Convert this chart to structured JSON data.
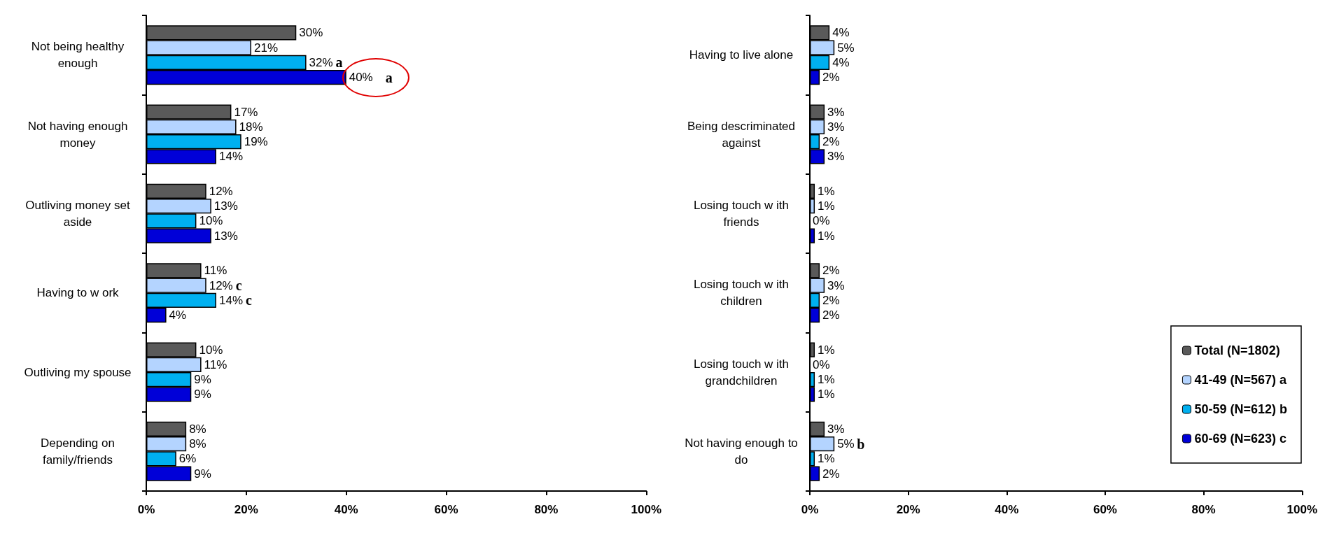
{
  "chart_data": [
    {
      "type": "bar",
      "orientation": "horizontal",
      "categories": [
        "Not being healthy\nenough",
        "Not having enough\nmoney",
        "Outliving money set\naside",
        "Having to w ork",
        "Outliving my spouse",
        "Depending on\nfamily/friends"
      ],
      "series": [
        {
          "color": "#5a5a5a",
          "values": [
            30,
            17,
            12,
            11,
            10,
            8
          ],
          "value_labels": [
            "30%",
            "17%",
            "12%",
            "11%",
            "10%",
            "8%"
          ]
        },
        {
          "color": "#b4d4ff",
          "values": [
            21,
            18,
            13,
            12,
            11,
            8
          ],
          "value_labels": [
            "21%",
            "18%",
            "13%",
            "12%",
            "11%",
            "8%"
          ]
        },
        {
          "color": "#00b0f0",
          "values": [
            32,
            19,
            10,
            14,
            9,
            6
          ],
          "value_labels": [
            "32%",
            "19%",
            "10%",
            "14%",
            "9%",
            "6%"
          ]
        },
        {
          "color": "#0000d8",
          "values": [
            40,
            14,
            13,
            4,
            9,
            9
          ],
          "value_labels": [
            "40%",
            "14%",
            "13%",
            "4%",
            "9%",
            "9%"
          ]
        }
      ],
      "xlim": [
        0,
        100
      ],
      "xticks": [
        {
          "value": 0,
          "label": "0%"
        },
        {
          "value": 20,
          "label": "20%"
        },
        {
          "value": 40,
          "label": "40%"
        },
        {
          "value": 60,
          "label": "60%"
        },
        {
          "value": 80,
          "label": "80%"
        },
        {
          "value": 100,
          "label": "100%"
        }
      ],
      "grid": false,
      "legend": false,
      "annotations": [
        {
          "text": "a",
          "x": 32,
          "y": "Not being healthy\nenough"
        },
        "a",
        {
          "text": "c",
          "x": 12,
          "y": "Having to w ork"
        },
        {
          "text": "c",
          "x": 14,
          "y": "Having to w ork"
        }
      ]
    },
    {
      "type": "bar",
      "orientation": "horizontal",
      "categories": [
        "Having to live alone",
        "Being descriminated\nagainst",
        "Losing touch w ith\nfriends",
        "Losing touch w ith\nchildren",
        "Losing touch w ith\ngrandchildren",
        "Not having enough to\ndo"
      ],
      "series": [
        {
          "name": "Total (N=1802)",
          "color": "#5a5a5a",
          "values": [
            4,
            3,
            1,
            2,
            1,
            3
          ],
          "value_labels": [
            "4%",
            "3%",
            "1%",
            "2%",
            "1%",
            "3%"
          ]
        },
        {
          "name": "41-49 (N=567) a",
          "color": "#b4d4ff",
          "values": [
            5,
            3,
            1,
            3,
            0,
            5
          ],
          "value_labels": [
            "5%",
            "3%",
            "1%",
            "3%",
            "0%",
            "5%"
          ]
        },
        {
          "name": "50-59 (N=612) b",
          "color": "#00b0f0",
          "values": [
            4,
            2,
            0,
            2,
            1,
            1
          ],
          "value_labels": [
            "4%",
            "2%",
            "0%",
            "2%",
            "1%",
            "1%"
          ]
        },
        {
          "name": "60-69 (N=623) c",
          "color": "#0000d8",
          "values": [
            2,
            3,
            1,
            2,
            1,
            2
          ],
          "value_labels": [
            "2%",
            "3%",
            "1%",
            "2%",
            "1%",
            "2%"
          ]
        }
      ],
      "xlim": [
        0,
        100
      ],
      "xticks": [
        {
          "value": 0,
          "label": "0%"
        },
        {
          "value": 20,
          "label": "20%"
        },
        {
          "value": 40,
          "label": "40%"
        },
        {
          "value": 60,
          "label": "60%"
        },
        {
          "value": 80,
          "label": "80%"
        },
        {
          "value": 100,
          "label": "100%"
        }
      ],
      "grid": false,
      "legend": "bottom right",
      "annotations": [
        {
          "text": "b",
          "x": 5,
          "y": "Not having enough to\ndo"
        }
      ]
    }
  ]
}
